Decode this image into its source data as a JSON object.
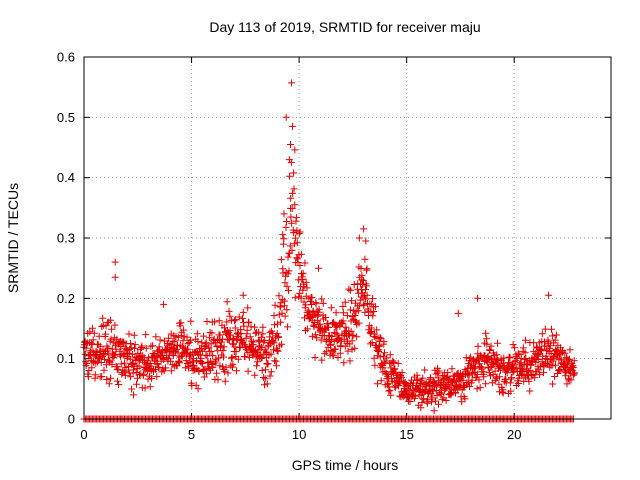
{
  "chart_data": {
    "type": "scatter",
    "title": "Day 113 of 2019, SRMTID for receiver maju",
    "xlabel": "GPS time / hours",
    "ylabel": "SRMTID / TECUs",
    "xlim": [
      0,
      24.5
    ],
    "ylim": [
      0,
      0.6
    ],
    "x_ticks": [
      0,
      5,
      10,
      15,
      20
    ],
    "y_ticks": [
      0,
      0.1,
      0.2,
      0.3,
      0.4,
      0.5,
      0.6
    ],
    "y_tick_labels": [
      "0",
      "0.1",
      "0.2",
      "0.3",
      "0.4",
      "0.5",
      "0.6"
    ],
    "grid": true,
    "marker": "+",
    "color": "#e00000",
    "data_extent_hours": [
      0,
      22.8
    ],
    "series": [
      {
        "name": "SRMTID",
        "profile_hours": [
          0,
          0.5,
          1.0,
          1.5,
          2.0,
          2.5,
          3.0,
          3.5,
          4.0,
          4.5,
          5.0,
          5.5,
          6.0,
          6.5,
          7.0,
          7.5,
          8.0,
          8.5,
          9.0,
          9.3,
          9.6,
          9.8,
          10.0,
          10.3,
          10.7,
          11.0,
          11.5,
          12.0,
          12.5,
          12.8,
          13.0,
          13.3,
          13.6,
          14.0,
          14.5,
          15.0,
          15.5,
          16.0,
          16.5,
          17.0,
          17.5,
          18.0,
          18.5,
          19.0,
          19.5,
          20.0,
          20.5,
          21.0,
          21.5,
          22.0,
          22.5,
          22.8
        ],
        "profile_median": [
          0.11,
          0.11,
          0.12,
          0.11,
          0.1,
          0.09,
          0.09,
          0.1,
          0.11,
          0.12,
          0.1,
          0.1,
          0.11,
          0.12,
          0.13,
          0.13,
          0.12,
          0.1,
          0.14,
          0.24,
          0.3,
          0.32,
          0.25,
          0.2,
          0.17,
          0.16,
          0.14,
          0.14,
          0.16,
          0.2,
          0.22,
          0.17,
          0.12,
          0.09,
          0.07,
          0.05,
          0.05,
          0.05,
          0.05,
          0.06,
          0.06,
          0.08,
          0.09,
          0.09,
          0.08,
          0.09,
          0.09,
          0.1,
          0.11,
          0.11,
          0.09,
          0.08
        ],
        "profile_spread": [
          0.04,
          0.04,
          0.05,
          0.05,
          0.04,
          0.04,
          0.04,
          0.04,
          0.04,
          0.05,
          0.05,
          0.04,
          0.05,
          0.05,
          0.05,
          0.05,
          0.05,
          0.04,
          0.06,
          0.1,
          0.12,
          0.11,
          0.08,
          0.06,
          0.05,
          0.05,
          0.05,
          0.05,
          0.06,
          0.07,
          0.07,
          0.06,
          0.05,
          0.04,
          0.03,
          0.025,
          0.025,
          0.025,
          0.03,
          0.03,
          0.03,
          0.04,
          0.04,
          0.04,
          0.04,
          0.04,
          0.04,
          0.04,
          0.04,
          0.04,
          0.03,
          0.03
        ],
        "notable_points": [
          [
            1.45,
            0.26
          ],
          [
            1.45,
            0.235
          ],
          [
            9.4,
            0.5
          ],
          [
            9.65,
            0.557
          ],
          [
            9.7,
            0.485
          ],
          [
            9.6,
            0.455
          ],
          [
            9.55,
            0.43
          ],
          [
            9.8,
            0.355
          ],
          [
            9.3,
            0.34
          ],
          [
            9.9,
            0.31
          ],
          [
            12.8,
            0.3
          ],
          [
            13.0,
            0.315
          ],
          [
            13.1,
            0.295
          ],
          [
            7.4,
            0.205
          ],
          [
            18.3,
            0.2
          ],
          [
            21.6,
            0.205
          ],
          [
            3.7,
            0.19
          ],
          [
            2.3,
            0.04
          ],
          [
            17.4,
            0.175
          ],
          [
            10.9,
            0.25
          ]
        ],
        "zero_band": "points at 0 throughout 0-22.8 h"
      }
    ]
  }
}
